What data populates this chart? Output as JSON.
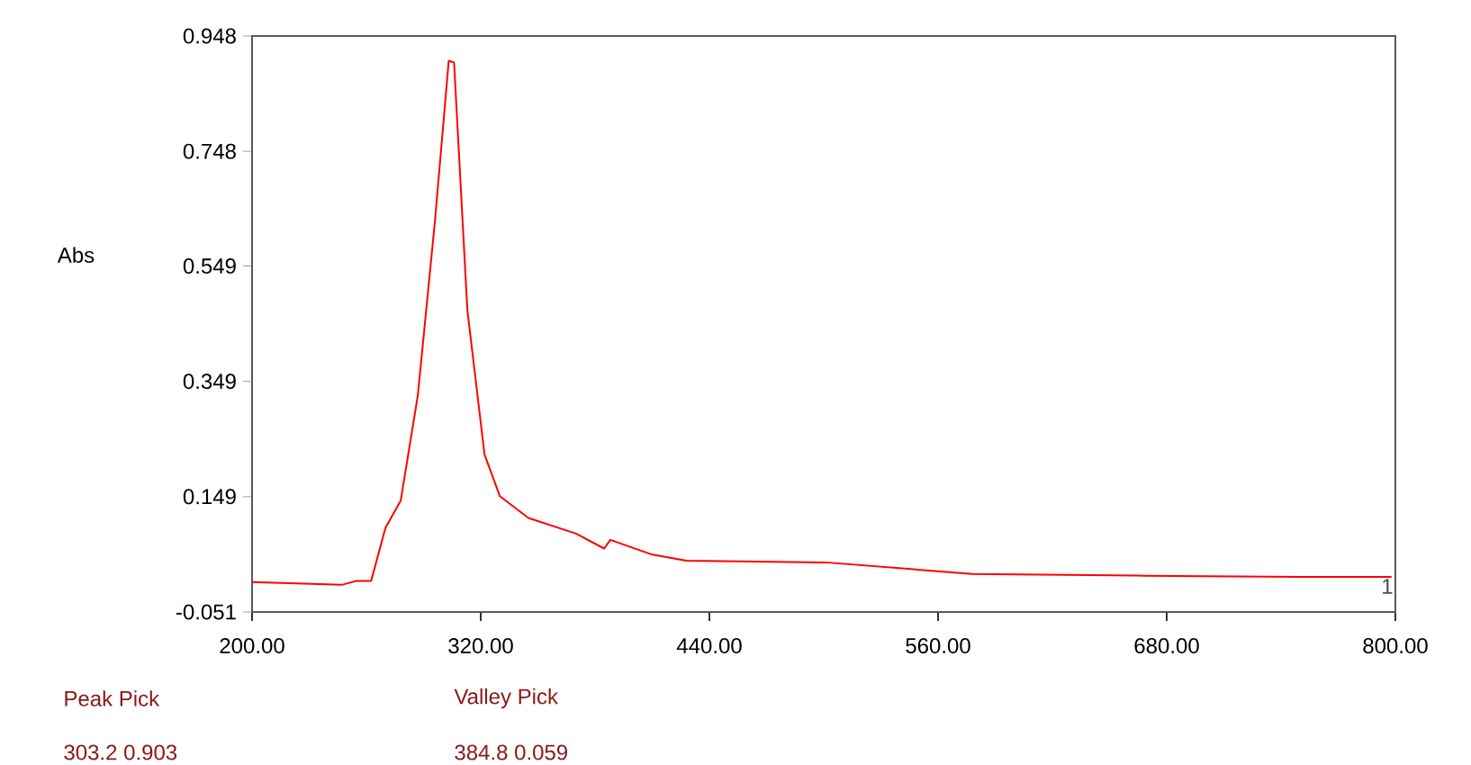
{
  "chart_data": {
    "type": "line",
    "ylabel": "Abs",
    "x": [
      200,
      247,
      255,
      262.5,
      270,
      278,
      287,
      296,
      303.2,
      306,
      313,
      322,
      330,
      345,
      370,
      384.8,
      388,
      409.5,
      428,
      501,
      578,
      664,
      749.5,
      798
    ],
    "series": [
      {
        "color": "#ff0000",
        "values": [
          0.001,
          -0.004,
          0.003,
          0.003,
          0.095,
          0.142,
          0.325,
          0.628,
          0.905,
          0.902,
          0.472,
          0.222,
          0.15,
          0.112,
          0.085,
          0.059,
          0.074,
          0.049,
          0.038,
          0.035,
          0.015,
          0.012,
          0.01,
          0.01
        ]
      }
    ],
    "xlim": [
      200,
      800
    ],
    "ylim": [
      -0.051,
      0.948
    ],
    "xticks": [
      {
        "value": 200,
        "label": "200.00"
      },
      {
        "value": 320,
        "label": "320.00"
      },
      {
        "value": 440,
        "label": "440.00"
      },
      {
        "value": 560,
        "label": "560.00"
      },
      {
        "value": 680,
        "label": "680.00"
      },
      {
        "value": 800,
        "label": "800.00"
      }
    ],
    "yticks": [
      -0.051,
      0.149,
      0.349,
      0.549,
      0.748,
      0.948
    ],
    "grid": false,
    "marker": "none",
    "line_style": "solid",
    "annotations": [
      "Peak Pick",
      "303.2  0.903",
      "Valley Pick",
      "384.8  0.059",
      {
        "text": "1",
        "x": 800,
        "y": 0.01
      }
    ]
  }
}
